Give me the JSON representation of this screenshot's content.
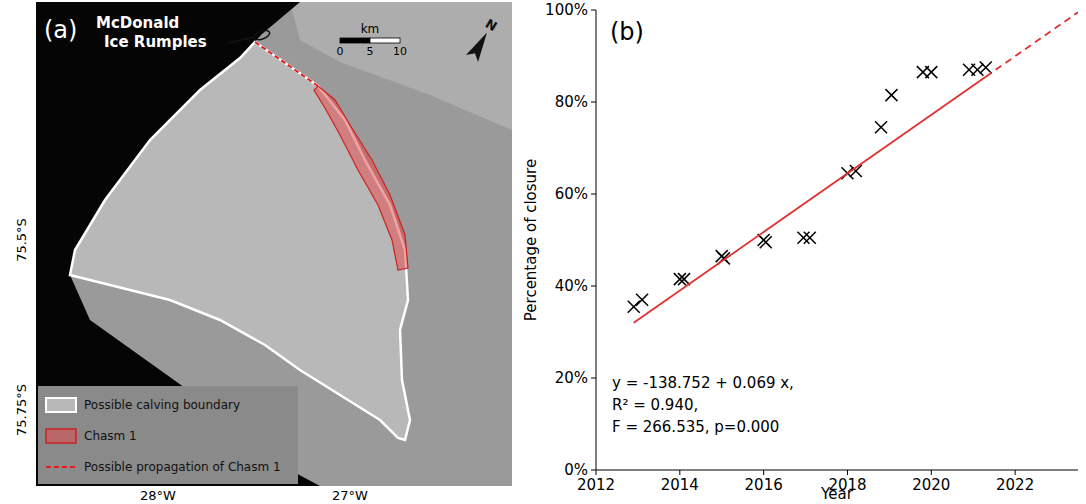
{
  "map": {
    "panel_label": "(a)",
    "title": "McDonald Ice Rumples",
    "scale_unit": "km",
    "scale_ticks": [
      0,
      5,
      10
    ],
    "north": "N",
    "lat_labels": [
      "75.5°S",
      "75.75°S"
    ],
    "lon_labels": [
      "28°W",
      "27°W"
    ],
    "legend_items": [
      "Possible calving boundary",
      "Chasm 1",
      "Possible propagation of Chasm 1"
    ]
  },
  "chart_data": {
    "type": "scatter",
    "panel_label": "(b)",
    "x_label": "Year",
    "y_label": "Percentage of closure",
    "annotations": [
      "y = -138.752 + 0.069 x,",
      "R² = 0.940,",
      "F = 266.535, p=0.000"
    ],
    "xlim": [
      2012,
      2023.5
    ],
    "ylim": [
      0,
      100
    ],
    "xticks": [
      2012,
      2014,
      2016,
      2018,
      2020,
      2022
    ],
    "yticks": [
      {
        "value": 0,
        "label": "0%"
      },
      {
        "value": 20,
        "label": "20%"
      },
      {
        "value": 40,
        "label": "40%"
      },
      {
        "value": 60,
        "label": "60%"
      },
      {
        "value": 80,
        "label": "80%"
      },
      {
        "value": 100,
        "label": "100%"
      }
    ],
    "grid": false,
    "series": [
      {
        "type": "scatter",
        "marker": "x",
        "color": "#000000",
        "x": [
          2012.9,
          2013.1,
          2014.0,
          2014.1,
          2015.0,
          2015.05,
          2016.0,
          2016.05,
          2016.95,
          2017.1,
          2018.0,
          2018.2,
          2018.8,
          2019.05,
          2019.8,
          2020.0,
          2020.9,
          2021.1,
          2021.3
        ],
        "values": [
          35.5,
          37,
          41.5,
          41.5,
          46.5,
          46,
          50,
          49.5,
          50.5,
          50.5,
          64.5,
          65,
          74.5,
          81.5,
          86.5,
          86.5,
          87,
          87,
          87.5
        ]
      },
      {
        "type": "line",
        "line_style": "solid",
        "color": "#e03030",
        "x": [
          2012.9,
          2021.3
        ],
        "values": [
          32,
          85.5
        ]
      },
      {
        "type": "line",
        "line_style": "dashed",
        "color": "#e03030",
        "x": [
          2021.3,
          2023.5
        ],
        "values": [
          85.5,
          99.5
        ]
      }
    ]
  }
}
